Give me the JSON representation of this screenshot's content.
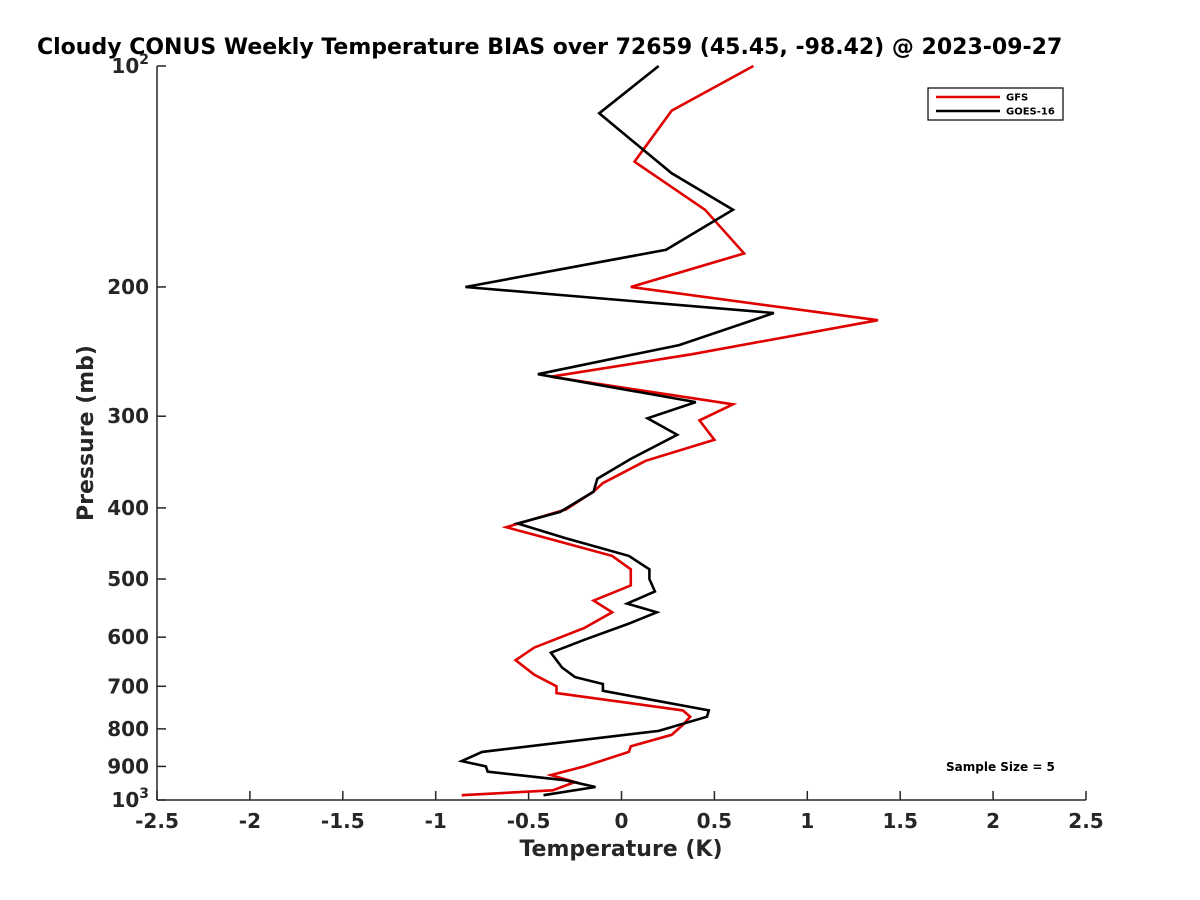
{
  "chart_data": {
    "type": "line",
    "title": "Cloudy CONUS Weekly Temperature BIAS over 72659 (45.45, -98.42) @ 2023-09-27",
    "xlabel": "Temperature (K)",
    "ylabel": "Pressure (mb)",
    "xlim": [
      -2.5,
      2.5
    ],
    "ylim": [
      100,
      1000
    ],
    "y_scale": "log",
    "y_reversed": true,
    "grid": false,
    "legend_position": "top-right",
    "x_ticks": [
      "-2.5",
      "-2",
      "-1.5",
      "-1",
      "-0.5",
      "0",
      "0.5",
      "1",
      "1.5",
      "2",
      "2.5"
    ],
    "x_tick_values": [
      -2.5,
      -2,
      -1.5,
      -1,
      -0.5,
      0,
      0.5,
      1,
      1.5,
      2,
      2.5
    ],
    "y_ticks": [
      {
        "value": 100,
        "base": "10",
        "exp": "2"
      },
      {
        "value": 200,
        "label": "200"
      },
      {
        "value": 300,
        "label": "300"
      },
      {
        "value": 400,
        "label": "400"
      },
      {
        "value": 500,
        "label": "500"
      },
      {
        "value": 600,
        "label": "600"
      },
      {
        "value": 700,
        "label": "700"
      },
      {
        "value": 800,
        "label": "800"
      },
      {
        "value": 900,
        "label": "900"
      },
      {
        "value": 1000,
        "base": "10",
        "exp": "3"
      }
    ],
    "annotation": "Sample Size = 5",
    "series": [
      {
        "name": "GFS",
        "color": "#e00000",
        "points": [
          [
            0.71,
            100
          ],
          [
            0.27,
            115
          ],
          [
            0.07,
            135
          ],
          [
            0.45,
            157
          ],
          [
            0.66,
            180
          ],
          [
            0.05,
            200
          ],
          [
            1.38,
            222
          ],
          [
            0.38,
            247
          ],
          [
            -0.38,
            265
          ],
          [
            0.6,
            289
          ],
          [
            0.42,
            304
          ],
          [
            0.5,
            323
          ],
          [
            0.13,
            345
          ],
          [
            -0.1,
            370
          ],
          [
            -0.15,
            380
          ],
          [
            -0.3,
            402
          ],
          [
            -0.62,
            425
          ],
          [
            -0.4,
            440
          ],
          [
            -0.05,
            465
          ],
          [
            0.05,
            485
          ],
          [
            0.05,
            510
          ],
          [
            -0.15,
            535
          ],
          [
            -0.05,
            555
          ],
          [
            -0.2,
            583
          ],
          [
            -0.47,
            620
          ],
          [
            -0.57,
            645
          ],
          [
            -0.47,
            675
          ],
          [
            -0.35,
            700
          ],
          [
            -0.35,
            715
          ],
          [
            0.33,
            755
          ],
          [
            0.37,
            770
          ],
          [
            0.33,
            790
          ],
          [
            0.27,
            815
          ],
          [
            0.05,
            845
          ],
          [
            0.04,
            860
          ],
          [
            -0.2,
            900
          ],
          [
            -0.38,
            925
          ],
          [
            -0.25,
            945
          ],
          [
            -0.37,
            970
          ],
          [
            -0.86,
            985
          ]
        ]
      },
      {
        "name": "GOES-16",
        "color": "#000000",
        "points": [
          [
            0.2,
            100
          ],
          [
            -0.12,
            116
          ],
          [
            0.27,
            140
          ],
          [
            0.6,
            157
          ],
          [
            0.24,
            178
          ],
          [
            -0.84,
            200
          ],
          [
            0.82,
            217
          ],
          [
            0.31,
            240
          ],
          [
            -0.45,
            263
          ],
          [
            0.4,
            287
          ],
          [
            0.14,
            302
          ],
          [
            0.3,
            318
          ],
          [
            0.05,
            343
          ],
          [
            -0.13,
            365
          ],
          [
            -0.15,
            380
          ],
          [
            -0.33,
            405
          ],
          [
            -0.56,
            420
          ],
          [
            -0.3,
            440
          ],
          [
            0.04,
            465
          ],
          [
            0.15,
            485
          ],
          [
            0.15,
            500
          ],
          [
            0.18,
            520
          ],
          [
            0.03,
            540
          ],
          [
            0.19,
            555
          ],
          [
            0.04,
            575
          ],
          [
            -0.2,
            605
          ],
          [
            -0.38,
            630
          ],
          [
            -0.32,
            660
          ],
          [
            -0.25,
            680
          ],
          [
            -0.1,
            695
          ],
          [
            -0.1,
            710
          ],
          [
            0.47,
            755
          ],
          [
            0.46,
            770
          ],
          [
            0.2,
            805
          ],
          [
            -0.75,
            860
          ],
          [
            -0.86,
            885
          ],
          [
            -0.73,
            900
          ],
          [
            -0.72,
            915
          ],
          [
            -0.3,
            940
          ],
          [
            -0.14,
            960
          ],
          [
            -0.42,
            985
          ]
        ]
      }
    ]
  }
}
